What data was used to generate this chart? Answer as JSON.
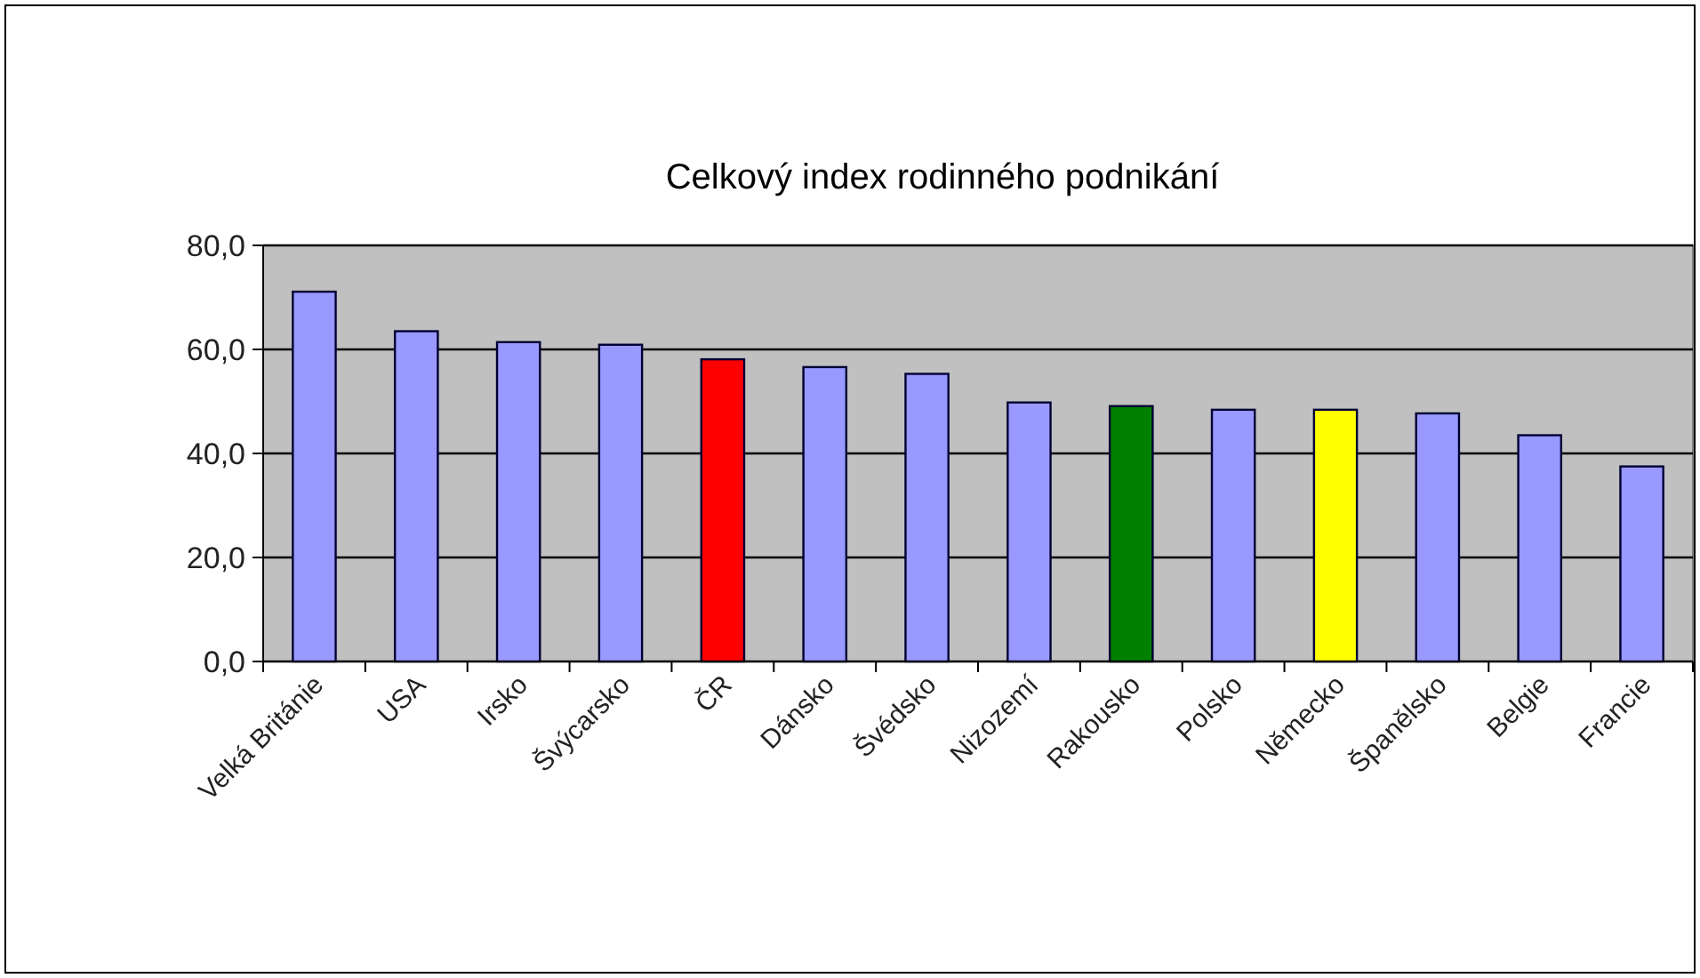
{
  "chart_data": {
    "type": "bar",
    "title": "Celkový index rodinného podnikání",
    "categories": [
      "Velká Británie",
      "USA",
      "Irsko",
      "Švýcarsko",
      "ČR",
      "Dánsko",
      "Švédsko",
      "Nizozemí",
      "Rakousko",
      "Polsko",
      "Německo",
      "Španělsko",
      "Belgie",
      "Francie"
    ],
    "values": [
      71.1,
      63.5,
      61.4,
      60.9,
      58.1,
      56.6,
      55.3,
      49.8,
      49.1,
      48.4,
      48.4,
      47.7,
      43.5,
      37.5
    ],
    "colors": [
      "#9999ff",
      "#9999ff",
      "#9999ff",
      "#9999ff",
      "#ff0000",
      "#9999ff",
      "#9999ff",
      "#9999ff",
      "#008000",
      "#9999ff",
      "#ffff00",
      "#9999ff",
      "#9999ff",
      "#9999ff"
    ],
    "ylim": [
      0,
      80
    ],
    "yticks": [
      {
        "value": 0,
        "label": "0,0"
      },
      {
        "value": 20,
        "label": "20,0"
      },
      {
        "value": 40,
        "label": "40,0"
      },
      {
        "value": 60,
        "label": "60,0"
      },
      {
        "value": 80,
        "label": "80,0"
      }
    ],
    "grid": "y"
  }
}
